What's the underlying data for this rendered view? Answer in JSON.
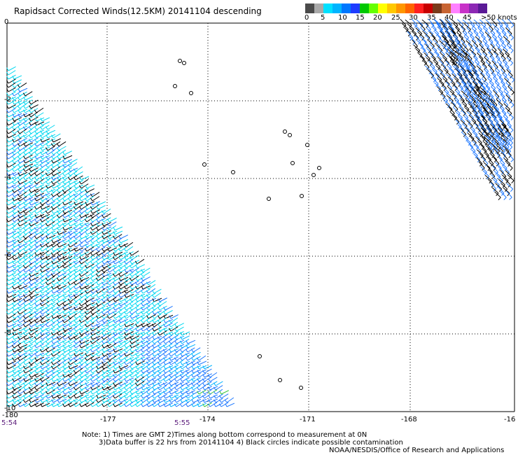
{
  "title": "Rapidsact Corrected Winds(12.5KM) 20141104 descending",
  "legend": {
    "colors": [
      "#4a4a4a",
      "#a9a9a9",
      "#00e0ff",
      "#00b4ff",
      "#0078ff",
      "#1e3cff",
      "#00c800",
      "#64ff00",
      "#ffff00",
      "#ffc800",
      "#ff9600",
      "#ff6400",
      "#ff2020",
      "#c80000",
      "#7a3a1a",
      "#c86432",
      "#ff80ff",
      "#c832c8",
      "#8c28b4",
      "#5a1a96"
    ],
    "labels": [
      "0",
      "5",
      "10",
      "15",
      "20",
      "25",
      "30",
      "35",
      "40",
      "45",
      ">50 knots"
    ]
  },
  "map": {
    "lat_labels": [
      "0",
      "-2",
      "-4",
      "-6",
      "-8",
      "-10"
    ],
    "lon_labels": [
      "-180",
      "-177",
      "-174",
      "-171",
      "-168",
      "-16"
    ],
    "times": [
      "5:54",
      "5:55"
    ]
  },
  "notes": [
    "Note: 1) Times are GMT 2)Times along bottom correspond to measurement at 0N",
    "3)Data buffer is 22 hrs from 20141104 4) Black circles indicate possible contamination",
    "NOAA/NESDIS/Office of Research and Applications"
  ]
}
